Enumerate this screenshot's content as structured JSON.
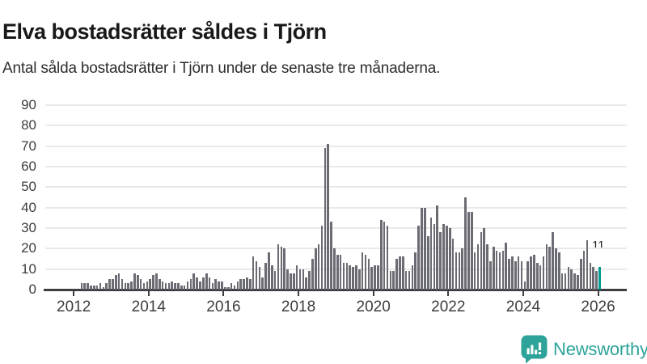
{
  "header": {
    "title": "Elva bostadsrätter såldes i Tjörn",
    "subtitle": "Antal sålda bostadsrätter i Tjörn under de senaste tre månaderna."
  },
  "chart_data": {
    "type": "bar",
    "title": "Elva bostadsrätter såldes i Tjörn",
    "subtitle": "Antal sålda bostadsrätter i Tjörn under de senaste tre månaderna.",
    "x_unit": "month",
    "start_month": "2012-03",
    "end_month": "2026-01",
    "x_tick_labels": [
      "2012",
      "2014",
      "2016",
      "2018",
      "2020",
      "2022",
      "2024",
      "2026"
    ],
    "y_ticks": [
      0,
      10,
      20,
      30,
      40,
      50,
      60,
      70,
      80,
      90
    ],
    "ylim": [
      0,
      95
    ],
    "grid": true,
    "legend": "none",
    "values": [
      3,
      3,
      3,
      2,
      2,
      2,
      3,
      1,
      3,
      5,
      5,
      7,
      8,
      5,
      3,
      3,
      4,
      8,
      7,
      5,
      3,
      4,
      5,
      7,
      8,
      5,
      4,
      3,
      3,
      4,
      3,
      3,
      2,
      2,
      4,
      5,
      8,
      6,
      4,
      6,
      8,
      6,
      3,
      5,
      4,
      4,
      1,
      1,
      3,
      2,
      4,
      5,
      5,
      6,
      5,
      16,
      14,
      11,
      6,
      13,
      18,
      12,
      9,
      22,
      21,
      20,
      10,
      8,
      8,
      12,
      10,
      10,
      6,
      9,
      15,
      20,
      22,
      31,
      69,
      71,
      33,
      20,
      17,
      17,
      13,
      13,
      12,
      11,
      12,
      10,
      18,
      17,
      15,
      11,
      12,
      12,
      34,
      33,
      31,
      9,
      9,
      15,
      16,
      16,
      9,
      9,
      12,
      18,
      31,
      40,
      40,
      26,
      35,
      32,
      41,
      28,
      32,
      31,
      30,
      25,
      18,
      18,
      20,
      45,
      38,
      38,
      18,
      22,
      28,
      30,
      22,
      14,
      21,
      19,
      18,
      19,
      23,
      15,
      16,
      14,
      16,
      14,
      4,
      14,
      16,
      17,
      13,
      12,
      16,
      22,
      21,
      28,
      20,
      18,
      8,
      8,
      11,
      10,
      8,
      7,
      15,
      19,
      24,
      13,
      11,
      9,
      11
    ],
    "highlighted_index": 166,
    "highlighted_value": 11,
    "last_value_annotation": "11",
    "colors": {
      "bar": "#6b6b73",
      "highlight": "#009b90",
      "grid": "#e9e9e9",
      "axis": "#3d3d42",
      "tick_text": "#3d3d3d",
      "title_text": "#191919",
      "brand": "#2da39a"
    }
  },
  "footer": {
    "brand": "Newsworthy"
  }
}
